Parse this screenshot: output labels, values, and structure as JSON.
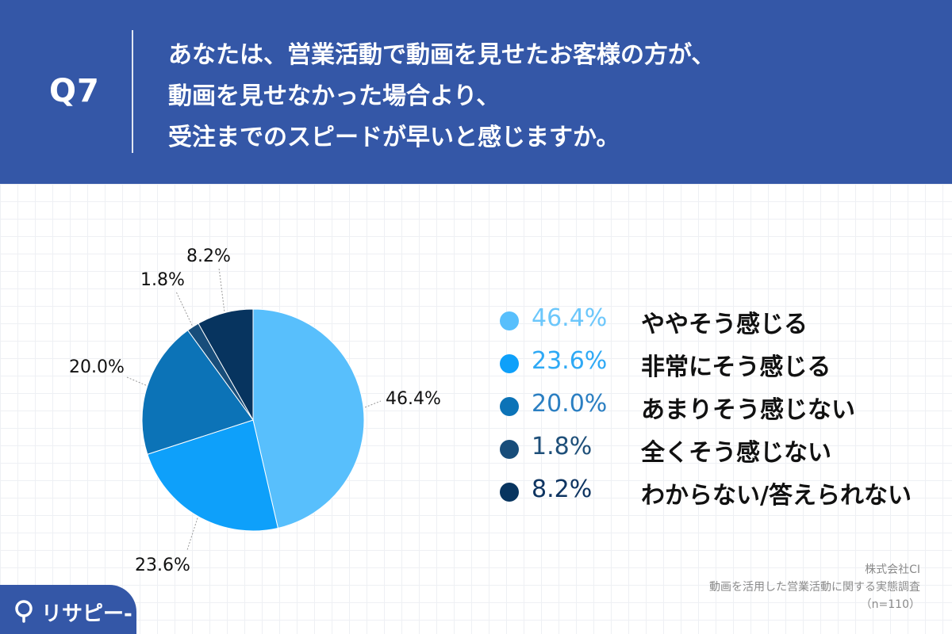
{
  "header": {
    "qno": "Q7",
    "question_lines": [
      "あなたは、営業活動で動画を見せたお客様の方が、",
      "動画を見せなかった場合より、",
      "受注までのスピードが早いと感じますか。"
    ]
  },
  "chart_data": {
    "type": "pie",
    "title": "",
    "slices": [
      {
        "label": "ややそう感じる",
        "value": 46.4,
        "value_label": "46.4%",
        "color": "#58bffc"
      },
      {
        "label": "非常にそう感じる",
        "value": 23.6,
        "value_label": "23.6%",
        "color": "#0ea0fa"
      },
      {
        "label": "あまりそう感じない",
        "value": 20.0,
        "value_label": "20.0%",
        "color": "#0c73b7"
      },
      {
        "label": "全くそう感じない",
        "value": 1.8,
        "value_label": "1.8%",
        "color": "#184d7a"
      },
      {
        "label": "わからない/答えられない",
        "value": 8.2,
        "value_label": "8.2%",
        "color": "#07345f"
      }
    ],
    "legend_placement": "right",
    "legend_pct_colors": [
      "#6cc7fb",
      "#2ea9f5",
      "#2b7fc2",
      "#1e4f79",
      "#0e3461"
    ],
    "start_angle": "top",
    "direction": "clockwise"
  },
  "source": {
    "company": "株式会社CI",
    "survey": "動画を活用した営業活動に関する実態調査",
    "n": "（n=110）"
  },
  "logo": {
    "text": "リサピー",
    "suffix": "-"
  }
}
